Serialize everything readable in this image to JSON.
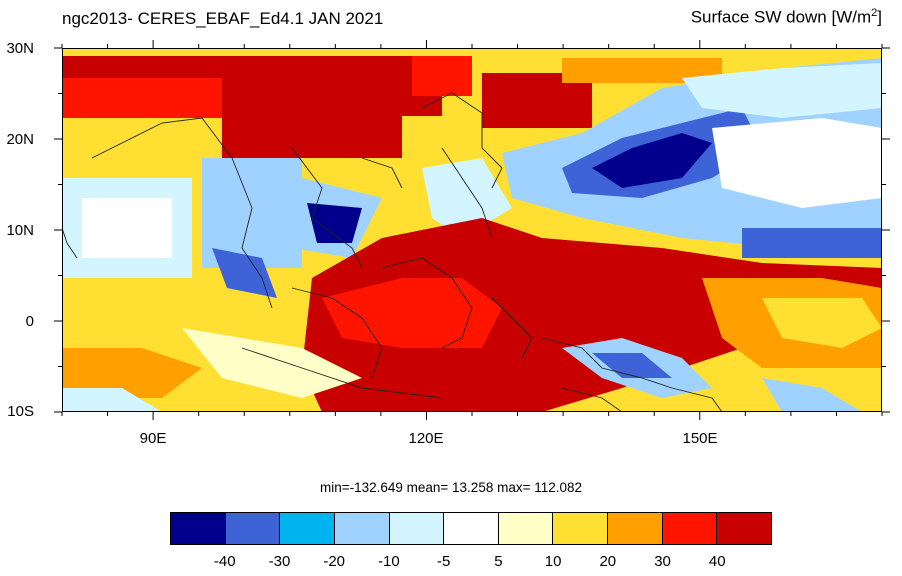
{
  "title_left": "ngc2013- CERES_EBAF_Ed4.1  JAN 2021",
  "title_right_main": "Surface SW down [W/m",
  "title_right_sup": "2",
  "title_right_end": "]",
  "lat_labels": [
    "30N",
    "20N",
    "10N",
    "0",
    "10S"
  ],
  "lon_labels": [
    "90E",
    "120E",
    "150E"
  ],
  "stats": "min=-132.649  mean=  13.258  max= 112.082",
  "colorbar": {
    "colors": [
      "#00008c",
      "#3e63d6",
      "#00b4f0",
      "#a0d2ff",
      "#d2f5ff",
      "#ffffff",
      "#ffffc8",
      "#ffe032",
      "#ffa000",
      "#ff1400",
      "#c80000"
    ],
    "labels": [
      "-40",
      "-30",
      "-20",
      "-10",
      "-5",
      "5",
      "10",
      "20",
      "30",
      "40"
    ]
  }
}
